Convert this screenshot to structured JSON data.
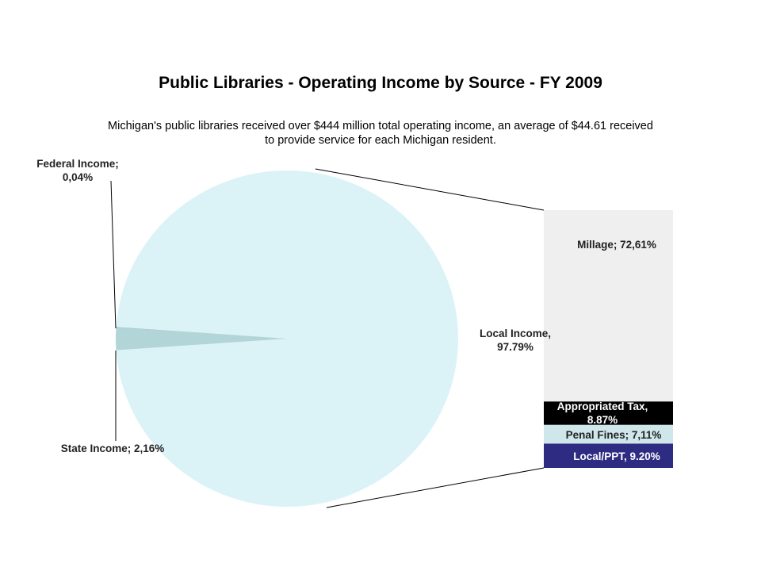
{
  "title": "Public Libraries - Operating Income by Source  -  FY 2009",
  "subtitle": "Michigan's public libraries received over $444 million total operating income, an average of $44.61 received to provide service for each Michigan resident.",
  "chart_data": {
    "type": "pie",
    "pie": {
      "slices": [
        {
          "label_lines": [
            "Local  Income,",
            "97.79%"
          ],
          "value": 97.79,
          "color": "#dbf3f7"
        },
        {
          "label_lines": [
            "State Income; 2,16%"
          ],
          "value": 2.16,
          "color": "#b2d6d8"
        },
        {
          "label_lines": [
            "Federal Income;",
            "0,04%"
          ],
          "value": 0.04,
          "color": "#7fb2b5"
        }
      ]
    },
    "breakdown_of": "Local  Income,",
    "bar": {
      "segments": [
        {
          "label_lines": [
            "Millage; 72,61%"
          ],
          "value": 72.61,
          "color": "#efefef",
          "text_color": "#222222"
        },
        {
          "label_lines": [
            "Appropriated Tax,",
            "8.87%"
          ],
          "value": 8.87,
          "color": "#000000",
          "text_color": "#ffffff"
        },
        {
          "label_lines": [
            "Penal Fines; 7,11%"
          ],
          "value": 7.11,
          "color": "#cfe6ea",
          "text_color": "#222222"
        },
        {
          "label_lines": [
            "Local/PPT, 9.20%"
          ],
          "value": 9.2,
          "color": "#2e2c82",
          "text_color": "#ffffff"
        }
      ]
    }
  }
}
